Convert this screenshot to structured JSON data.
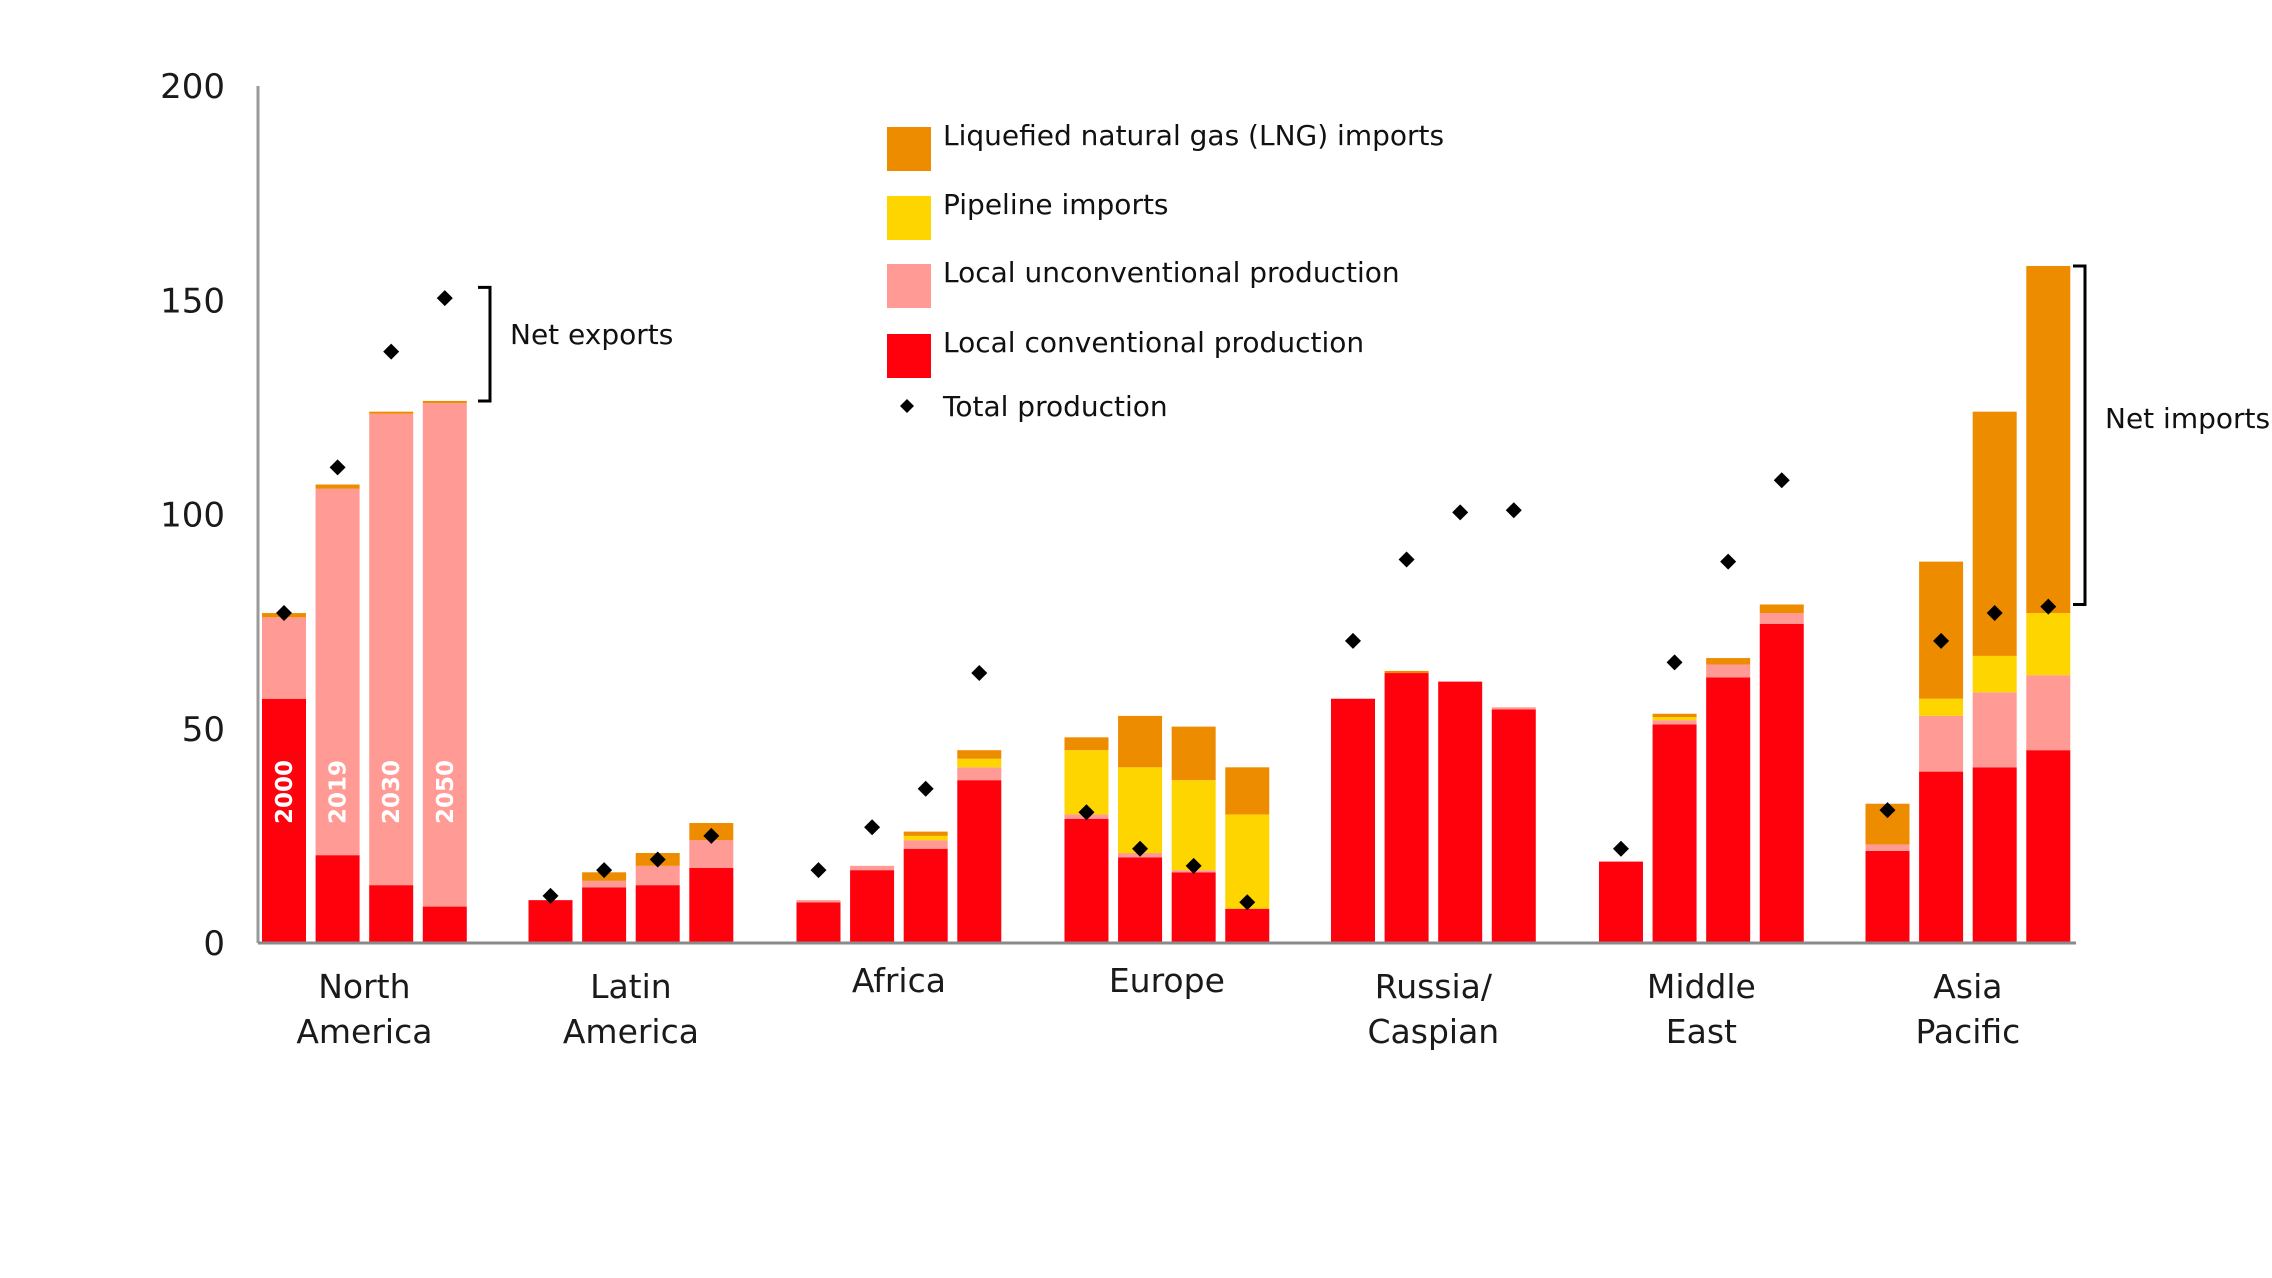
{
  "chart_data": {
    "type": "bar",
    "stacked": true,
    "title": "",
    "xlabel": "",
    "ylabel": "",
    "ylim": [
      0,
      200
    ],
    "yticks": [
      0,
      50,
      100,
      150,
      200
    ],
    "grid": false,
    "legend_position": "top-center",
    "years": [
      "2000",
      "2019",
      "2030",
      "2050"
    ],
    "categories": [
      {
        "label": [
          "North",
          "America"
        ]
      },
      {
        "label": [
          "Latin",
          "America"
        ]
      },
      {
        "label": [
          "Africa"
        ]
      },
      {
        "label": [
          "Europe"
        ]
      },
      {
        "label": [
          "Russia/",
          "Caspian"
        ]
      },
      {
        "label": [
          "Middle",
          "East"
        ]
      },
      {
        "label": [
          "Asia",
          "Pacific"
        ]
      }
    ],
    "series": [
      {
        "name": "Local conventional production",
        "color": "#FF000D",
        "values": [
          [
            57,
            20.5,
            13.5,
            8.5
          ],
          [
            10,
            13,
            13.5,
            17.5
          ],
          [
            9.5,
            17,
            22,
            38
          ],
          [
            29,
            20,
            16.5,
            8
          ],
          [
            57,
            63,
            61,
            54.5
          ],
          [
            19,
            51,
            62,
            74.5
          ],
          [
            21.5,
            40,
            41,
            45
          ]
        ]
      },
      {
        "name": "Local unconventional production",
        "color": "#FF9A94",
        "values": [
          [
            19,
            85.5,
            110,
            117.5
          ],
          [
            0,
            1.5,
            4.5,
            6.5
          ],
          [
            0.5,
            1,
            2,
            3
          ],
          [
            1,
            1,
            0.5,
            0
          ],
          [
            0,
            0,
            0,
            0.5
          ],
          [
            0,
            1,
            3,
            2.5
          ],
          [
            1.5,
            13,
            17.5,
            17.5
          ]
        ]
      },
      {
        "name": "Pipeline imports",
        "color": "#FFD500",
        "values": [
          [
            0,
            0,
            0,
            0
          ],
          [
            0,
            0,
            0,
            0
          ],
          [
            0,
            0,
            1,
            2
          ],
          [
            15,
            20,
            21,
            22
          ],
          [
            0,
            0,
            0,
            0
          ],
          [
            0,
            0.7,
            0,
            0
          ],
          [
            0,
            4,
            8.5,
            14.5
          ]
        ]
      },
      {
        "name": "Liquefied natural gas (LNG) imports",
        "color": "#EE8C00",
        "values": [
          [
            1,
            1,
            0.5,
            0.5
          ],
          [
            0,
            2,
            3,
            4
          ],
          [
            0,
            0,
            1,
            2
          ],
          [
            3,
            12,
            12.5,
            11
          ],
          [
            0,
            0.5,
            0,
            0
          ],
          [
            0,
            0.8,
            1.5,
            2
          ],
          [
            9.5,
            32,
            57,
            81
          ]
        ]
      },
      {
        "name": "Total production",
        "type": "scatter",
        "color": "#000000",
        "values": [
          [
            77,
            111,
            138,
            150.5
          ],
          [
            11,
            17,
            19.5,
            25
          ],
          [
            17,
            27,
            36,
            63
          ],
          [
            30.5,
            22,
            18,
            9.5
          ],
          [
            70.5,
            89.5,
            100.5,
            101
          ],
          [
            22,
            65.5,
            89,
            108
          ],
          [
            31,
            70.5,
            77,
            78.5
          ]
        ]
      }
    ],
    "legend": [
      {
        "label": "Liquefied natural gas (LNG) imports",
        "color": "#EE8C00",
        "marker": "square"
      },
      {
        "label": "Pipeline imports",
        "color": "#FFD500",
        "marker": "square"
      },
      {
        "label": "Local unconventional production",
        "color": "#FF9A94",
        "marker": "square"
      },
      {
        "label": "Local conventional production",
        "color": "#FF000D",
        "marker": "square"
      },
      {
        "label": "Total production",
        "color": "#000000",
        "marker": "diamond"
      }
    ],
    "annotations": [
      {
        "text": "Net exports",
        "category": "North America",
        "from": 126.5,
        "to": 153
      },
      {
        "text": "Net imports",
        "category": "Asia Pacific",
        "from": 79,
        "to": 158
      }
    ]
  }
}
